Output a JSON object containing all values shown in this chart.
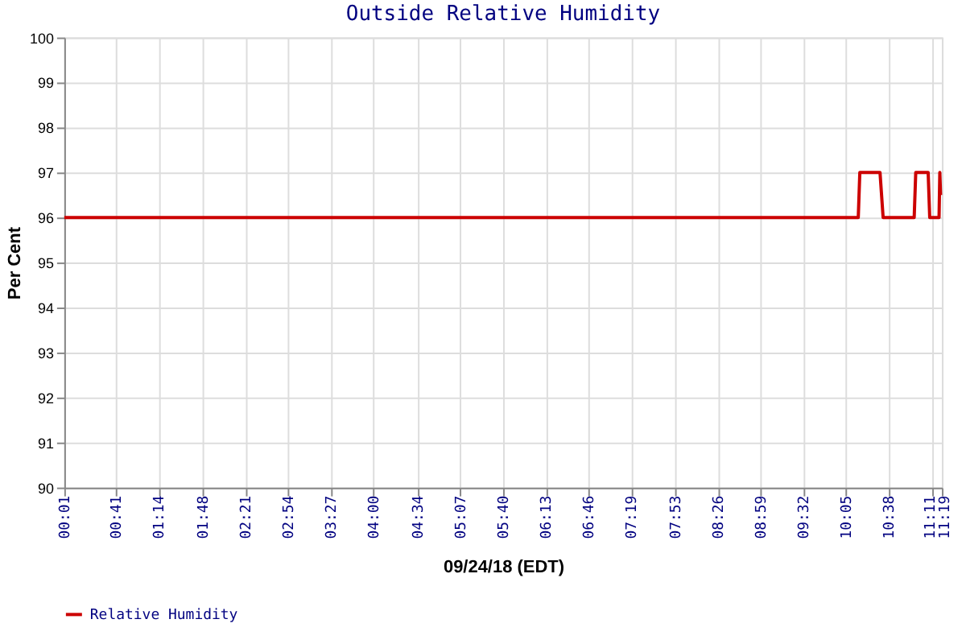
{
  "chart_data": {
    "type": "line",
    "title": "Outside Relative Humidity",
    "xlabel": "09/24/18 (EDT)",
    "ylabel": "Per Cent",
    "x": [
      0.0167,
      10.24,
      10.25,
      10.26,
      10.52,
      10.54,
      10.56,
      10.96,
      10.97,
      10.98,
      11.14,
      11.15,
      11.16,
      11.28,
      11.29,
      11.3
    ],
    "series": [
      {
        "name": "Relative Humidity",
        "color": "#cc0000",
        "values": [
          96,
          96,
          96.5,
          97,
          97,
          96.5,
          96,
          96,
          96.5,
          97,
          97,
          96.5,
          96,
          96,
          97,
          96.5
        ]
      }
    ],
    "xlim": [
      0.0167,
      11.3167
    ],
    "xticks": [
      {
        "value": 0.0167,
        "label": "00:01"
      },
      {
        "value": 0.6833,
        "label": "00:41"
      },
      {
        "value": 1.2333,
        "label": "01:14"
      },
      {
        "value": 1.8,
        "label": "01:48"
      },
      {
        "value": 2.35,
        "label": "02:21"
      },
      {
        "value": 2.9,
        "label": "02:54"
      },
      {
        "value": 3.45,
        "label": "03:27"
      },
      {
        "value": 4.0,
        "label": "04:00"
      },
      {
        "value": 4.5667,
        "label": "04:34"
      },
      {
        "value": 5.1167,
        "label": "05:07"
      },
      {
        "value": 5.6667,
        "label": "05:40"
      },
      {
        "value": 6.2167,
        "label": "06:13"
      },
      {
        "value": 6.7667,
        "label": "06:46"
      },
      {
        "value": 7.3167,
        "label": "07:19"
      },
      {
        "value": 7.8833,
        "label": "07:53"
      },
      {
        "value": 8.4333,
        "label": "08:26"
      },
      {
        "value": 8.9833,
        "label": "08:59"
      },
      {
        "value": 9.5333,
        "label": "09:32"
      },
      {
        "value": 10.0833,
        "label": "10:05"
      },
      {
        "value": 10.6333,
        "label": "10:38"
      },
      {
        "value": 11.1833,
        "label": "11:11"
      },
      {
        "value": 11.3167,
        "label": "11:19"
      }
    ],
    "ylim": [
      90,
      100
    ],
    "yticks": [
      90,
      91,
      92,
      93,
      94,
      95,
      96,
      97,
      98,
      99,
      100
    ],
    "grid": true,
    "legend": "bottom",
    "line_style": "solid"
  }
}
